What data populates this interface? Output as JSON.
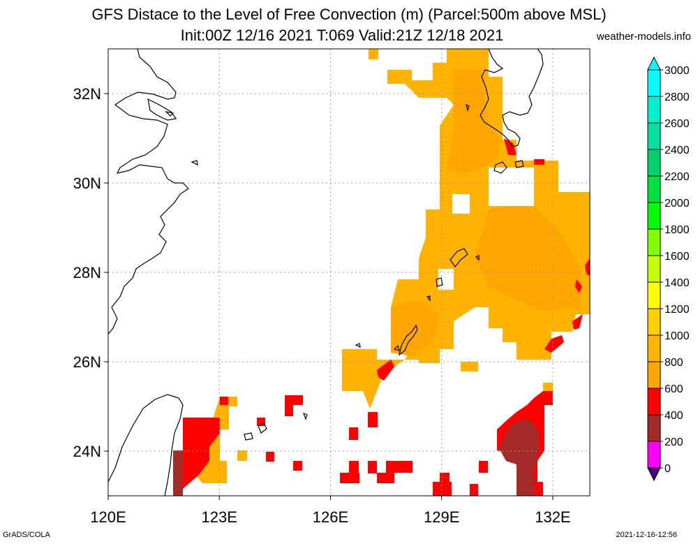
{
  "title_line1": "GFS Distace to the Level of Free Convection (m) (Parcel:500m above MSL)",
  "title_line2": "Init:00Z 12/16 2021 T:069 Valid:21Z 12/18 2021",
  "site": "weather-models.info",
  "footer_left": "GrADS/COLA",
  "footer_right": "2021-12-16-12:56",
  "map": {
    "lon_range": [
      120,
      133
    ],
    "lat_range": [
      23,
      33
    ],
    "lat_ticks": [
      {
        "value": 24,
        "label": "24N"
      },
      {
        "value": 26,
        "label": "26N"
      },
      {
        "value": 28,
        "label": "28N"
      },
      {
        "value": 30,
        "label": "30N"
      },
      {
        "value": 32,
        "label": "32N"
      }
    ],
    "lon_ticks": [
      {
        "value": 120,
        "label": "120E"
      },
      {
        "value": 123,
        "label": "123E"
      },
      {
        "value": 126,
        "label": "126E"
      },
      {
        "value": 129,
        "label": "129E"
      },
      {
        "value": 132,
        "label": "132E"
      }
    ],
    "colors": {
      "orange_dark": "#ffa500",
      "orange": "#ffb300",
      "red": "#ff0000",
      "brown": "#a52a2a"
    }
  },
  "colorbar": {
    "labels": [
      "0",
      "200",
      "400",
      "600",
      "800",
      "1000",
      "1200",
      "1400",
      "1600",
      "1800",
      "2000",
      "2200",
      "2400",
      "2600",
      "2800",
      "3000"
    ],
    "colors": [
      "#4b0082",
      "#ff00ff",
      "#a52a2a",
      "#ff0000",
      "#ffa500",
      "#ffb400",
      "#ffd000",
      "#ffff00",
      "#c8ff00",
      "#80ff00",
      "#00ff00",
      "#00e040",
      "#00d070",
      "#00e0a0",
      "#00f0d0",
      "#00ffff"
    ]
  }
}
